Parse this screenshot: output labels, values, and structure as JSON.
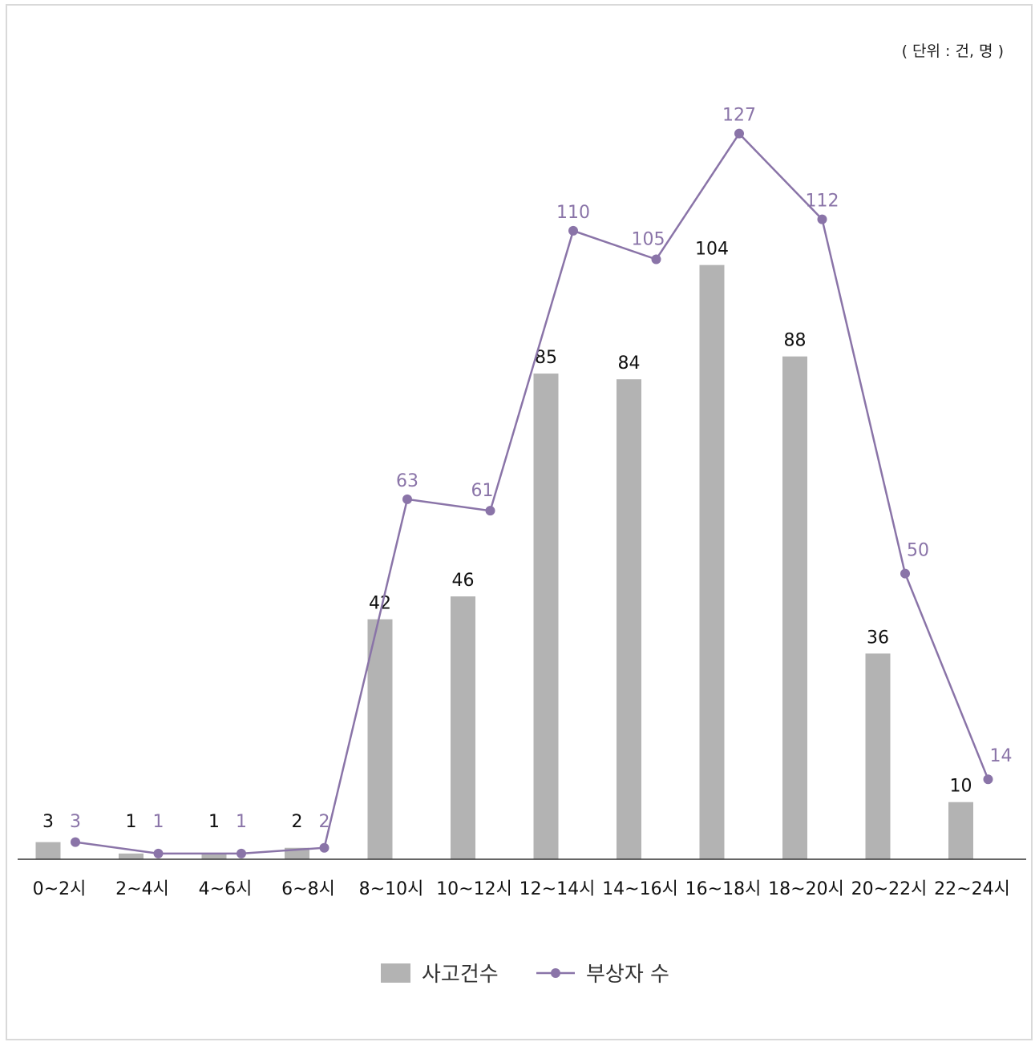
{
  "unit_note": "( 단위 : 건, 명 )",
  "colors": {
    "bar": "#b3b3b3",
    "line": "#8a74a8",
    "axis": "#333333"
  },
  "chart_data": {
    "type": "bar",
    "categories": [
      "0~2시",
      "2~4시",
      "4~6시",
      "6~8시",
      "8~10시",
      "10~12시",
      "12~14시",
      "14~16시",
      "16~18시",
      "18~20시",
      "20~22시",
      "22~24시"
    ],
    "series": [
      {
        "name": "사고건수",
        "type": "bar",
        "values": [
          3,
          1,
          1,
          2,
          42,
          46,
          85,
          84,
          104,
          88,
          36,
          10
        ]
      },
      {
        "name": "부상자 수",
        "type": "line",
        "values": [
          3,
          1,
          1,
          2,
          63,
          61,
          110,
          105,
          127,
          112,
          50,
          14
        ]
      }
    ],
    "ylim": [
      0,
      140
    ],
    "grid": false,
    "legend": "bottom-center"
  }
}
